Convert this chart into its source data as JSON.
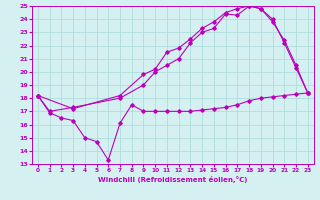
{
  "xlabel": "Windchill (Refroidissement éolien,°C)",
  "xlim": [
    -0.5,
    23.5
  ],
  "ylim": [
    13,
    25
  ],
  "xticks": [
    0,
    1,
    2,
    3,
    4,
    5,
    6,
    7,
    8,
    9,
    10,
    11,
    12,
    13,
    14,
    15,
    16,
    17,
    18,
    19,
    20,
    21,
    22,
    23
  ],
  "yticks": [
    13,
    14,
    15,
    16,
    17,
    18,
    19,
    20,
    21,
    22,
    23,
    24,
    25
  ],
  "bg_color": "#d5f0f0",
  "line_color": "#bb00bb",
  "grid_color": "#b0dede",
  "series": [
    {
      "x": [
        0,
        1,
        2,
        3,
        4,
        5,
        6,
        7,
        8,
        9,
        10,
        11,
        12,
        13,
        14,
        15,
        16,
        17,
        18,
        19,
        20,
        21,
        22,
        23
      ],
      "y": [
        18.2,
        16.9,
        16.5,
        16.3,
        15.0,
        14.7,
        13.3,
        16.1,
        17.5,
        17.0,
        17.0,
        17.0,
        17.0,
        17.0,
        17.1,
        17.2,
        17.3,
        17.5,
        17.8,
        18.0,
        18.1,
        18.2,
        18.3,
        18.4
      ]
    },
    {
      "x": [
        0,
        1,
        3,
        7,
        9,
        10,
        11,
        12,
        13,
        14,
        15,
        16,
        17,
        18,
        19,
        20,
        21,
        22,
        23
      ],
      "y": [
        18.2,
        17.0,
        17.3,
        18.0,
        19.0,
        20.0,
        20.5,
        21.0,
        22.2,
        23.0,
        23.3,
        24.4,
        24.3,
        25.0,
        24.8,
        23.8,
        22.4,
        20.5,
        18.4
      ]
    },
    {
      "x": [
        0,
        3,
        7,
        9,
        10,
        11,
        12,
        13,
        14,
        15,
        16,
        17,
        18,
        19,
        20,
        21,
        22,
        23
      ],
      "y": [
        18.2,
        17.2,
        18.2,
        19.8,
        20.2,
        21.5,
        21.8,
        22.5,
        23.3,
        23.8,
        24.5,
        24.8,
        25.0,
        24.8,
        24.0,
        22.2,
        20.3,
        18.4
      ]
    }
  ]
}
